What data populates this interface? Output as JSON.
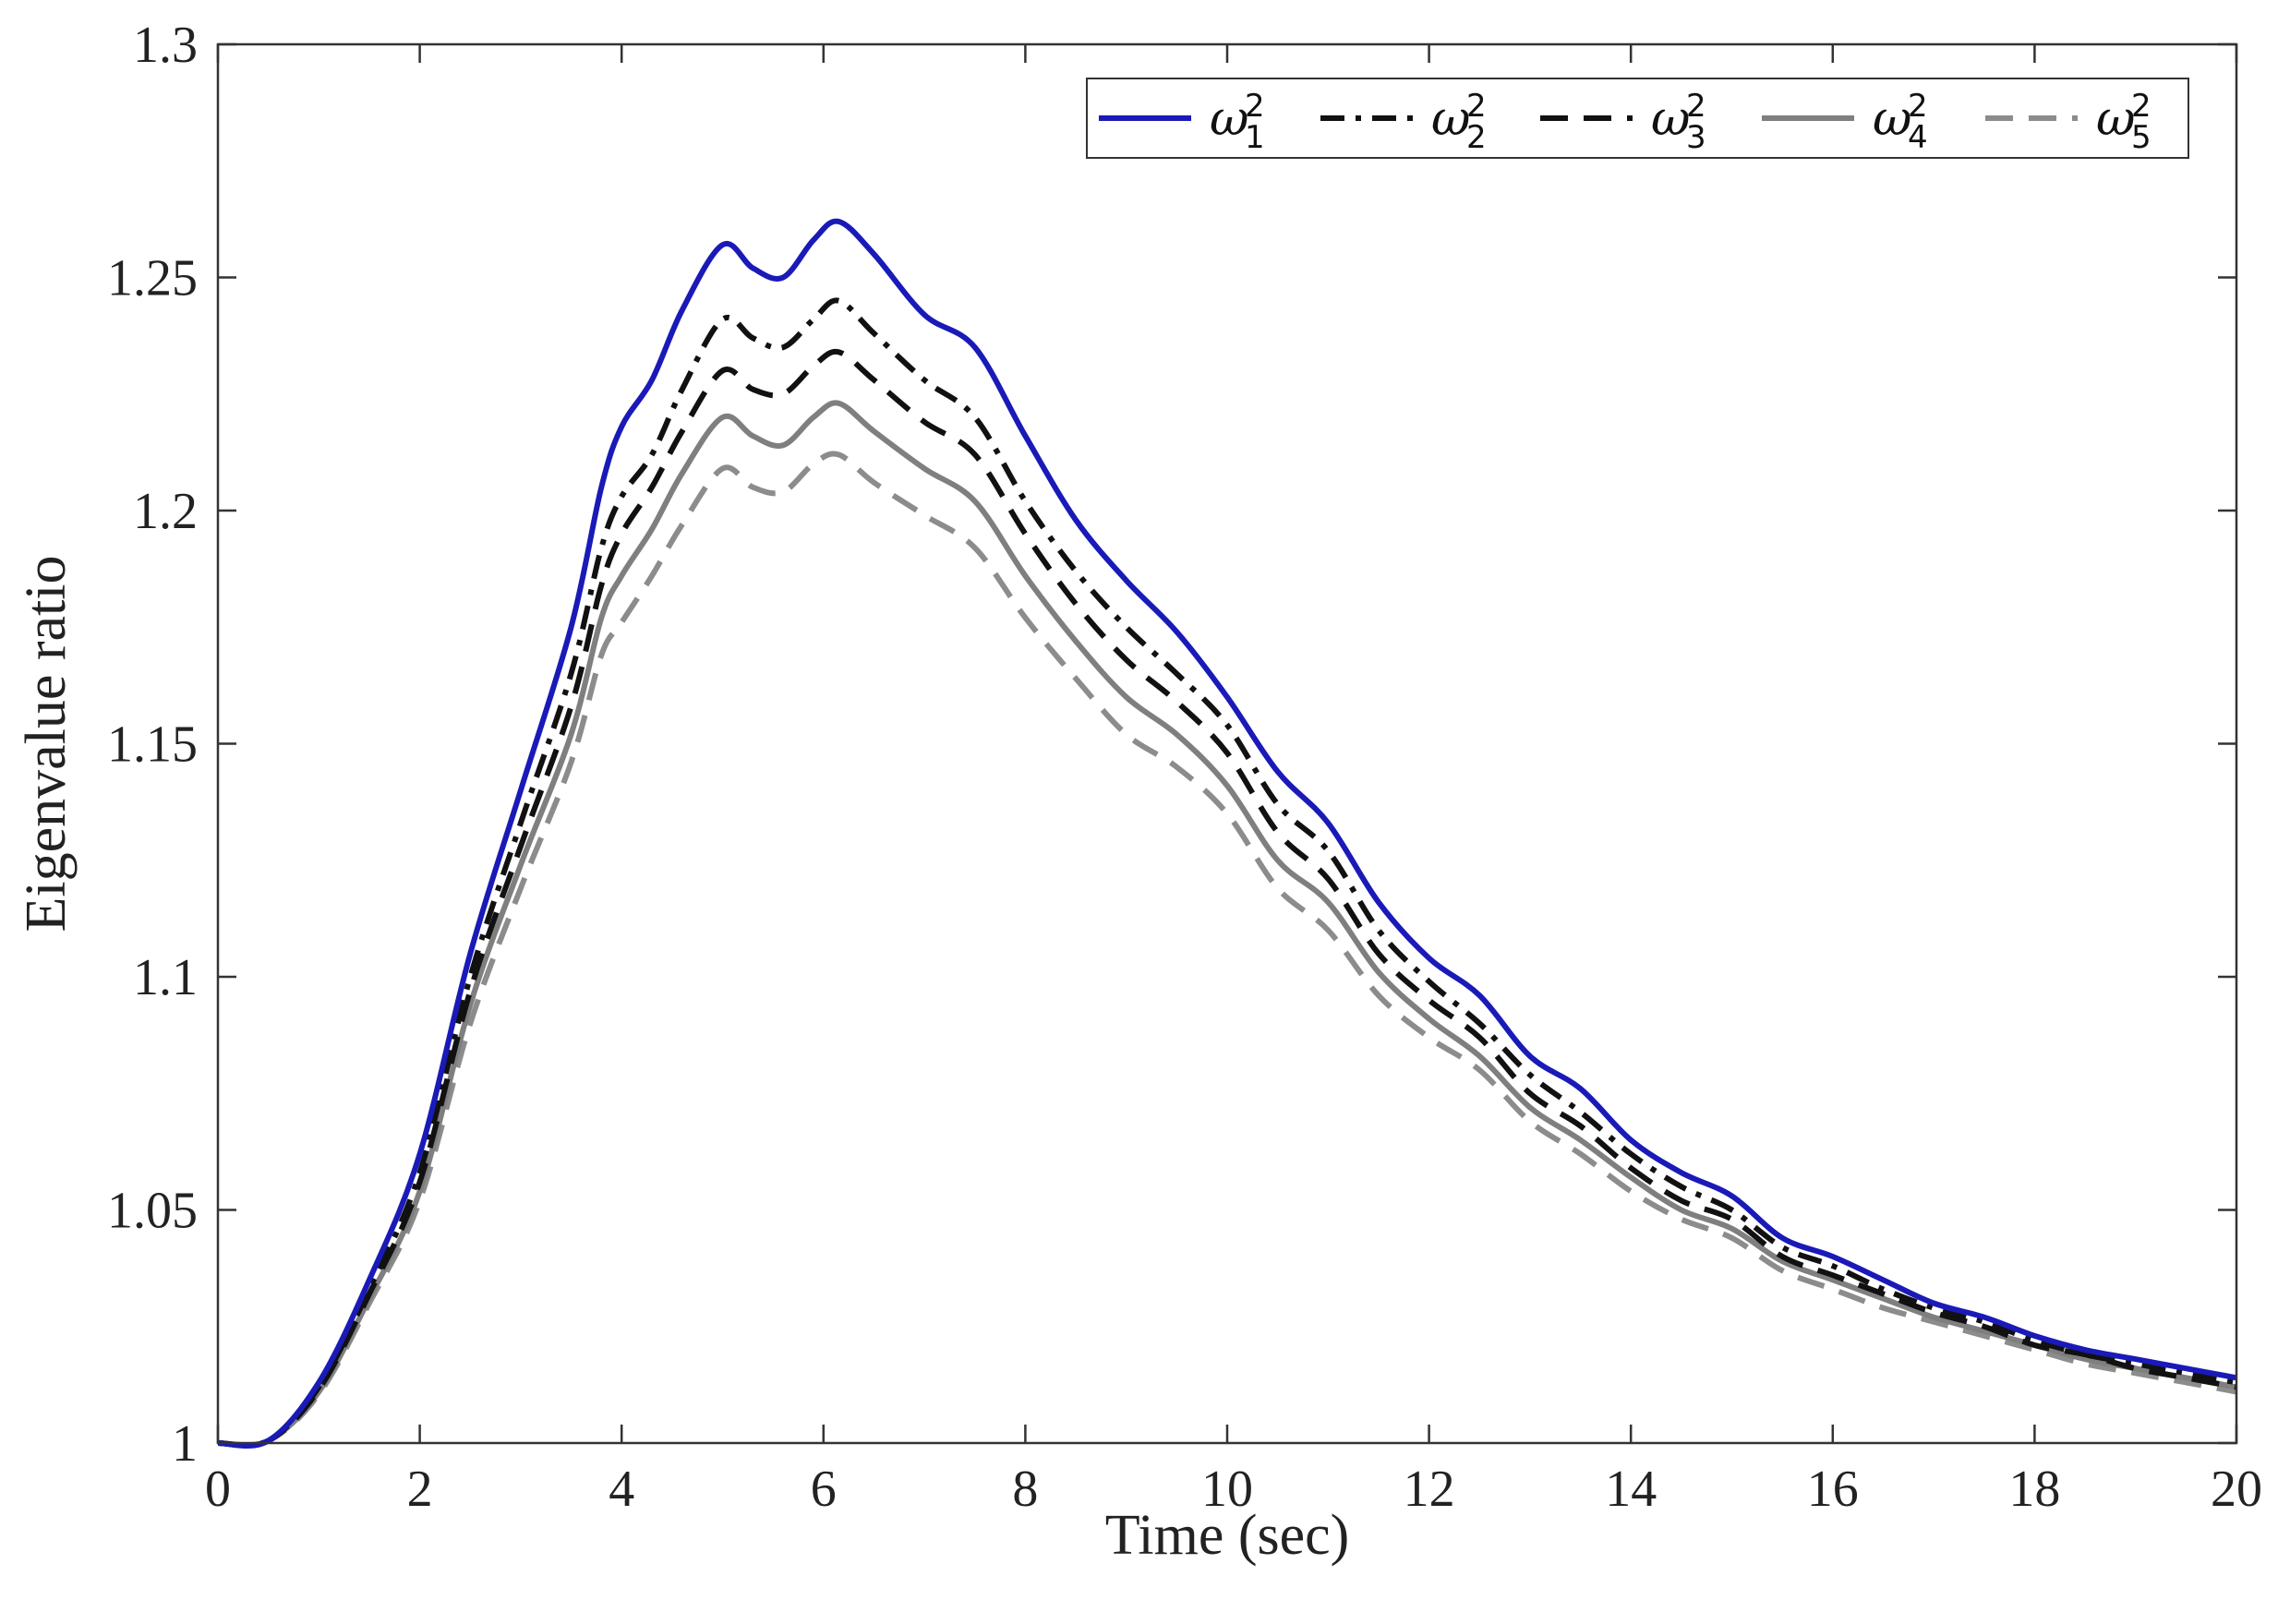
{
  "chart_data": {
    "type": "line",
    "title": "",
    "xlabel": "Time (sec)",
    "ylabel": "Eigenvalue ratio",
    "xlim": [
      0,
      20
    ],
    "ylim": [
      1,
      1.3
    ],
    "xticks": [
      0,
      2,
      4,
      6,
      8,
      10,
      12,
      14,
      16,
      18,
      20
    ],
    "xtick_labels": [
      "0",
      "2",
      "4",
      "6",
      "8",
      "10",
      "12",
      "14",
      "16",
      "18",
      "20"
    ],
    "yticks": [
      1,
      1.05,
      1.1,
      1.15,
      1.2,
      1.25,
      1.3
    ],
    "ytick_labels": [
      "1",
      "1.05",
      "1.1",
      "1.15",
      "1.2",
      "1.25",
      "1.3"
    ],
    "grid": false,
    "legend_position": "top-right",
    "x": [
      0,
      0.5,
      1,
      1.5,
      2,
      2.5,
      3,
      3.5,
      3.8,
      4,
      4.3,
      4.6,
      5,
      5.3,
      5.6,
      5.9,
      6.15,
      6.5,
      7,
      7.5,
      8,
      8.5,
      9,
      9.5,
      10,
      10.5,
      11,
      11.5,
      12,
      12.5,
      13,
      13.5,
      14,
      14.5,
      15,
      15.5,
      16,
      16.5,
      17,
      17.5,
      18,
      18.5,
      19,
      19.5,
      20
    ],
    "series": [
      {
        "name": "ω1²",
        "symbol": "ω",
        "subscript": "1",
        "superscript": "2",
        "color": "#1a1ab8",
        "style": "solid",
        "values": [
          1.0,
          1.0005,
          1.013,
          1.035,
          1.062,
          1.105,
          1.14,
          1.175,
          1.205,
          1.218,
          1.228,
          1.243,
          1.257,
          1.252,
          1.25,
          1.258,
          1.262,
          1.255,
          1.242,
          1.235,
          1.216,
          1.198,
          1.185,
          1.174,
          1.16,
          1.144,
          1.133,
          1.116,
          1.104,
          1.096,
          1.083,
          1.076,
          1.065,
          1.058,
          1.053,
          1.044,
          1.04,
          1.035,
          1.03,
          1.027,
          1.023,
          1.02,
          1.018,
          1.016,
          1.014
        ]
      },
      {
        "name": "ω2²",
        "symbol": "ω",
        "subscript": "2",
        "superscript": "2",
        "color": "#111111",
        "style": "dashdot",
        "values": [
          1.0,
          1.0005,
          1.012,
          1.033,
          1.058,
          1.1,
          1.133,
          1.165,
          1.192,
          1.203,
          1.212,
          1.226,
          1.241,
          1.237,
          1.235,
          1.241,
          1.245,
          1.238,
          1.228,
          1.22,
          1.202,
          1.187,
          1.175,
          1.165,
          1.154,
          1.137,
          1.127,
          1.11,
          1.099,
          1.09,
          1.079,
          1.071,
          1.062,
          1.055,
          1.05,
          1.042,
          1.038,
          1.033,
          1.029,
          1.026,
          1.022,
          1.019,
          1.017,
          1.015,
          1.013
        ]
      },
      {
        "name": "ω3²",
        "symbol": "ω",
        "subscript": "3",
        "superscript": "2",
        "color": "#111111",
        "style": "dashed",
        "values": [
          1.0,
          1.0005,
          1.0115,
          1.032,
          1.056,
          1.097,
          1.128,
          1.158,
          1.184,
          1.195,
          1.205,
          1.217,
          1.23,
          1.226,
          1.225,
          1.231,
          1.234,
          1.228,
          1.219,
          1.212,
          1.195,
          1.18,
          1.168,
          1.159,
          1.148,
          1.131,
          1.121,
          1.105,
          1.095,
          1.087,
          1.075,
          1.068,
          1.059,
          1.052,
          1.048,
          1.04,
          1.036,
          1.032,
          1.028,
          1.025,
          1.021,
          1.019,
          1.016,
          1.014,
          1.012
        ]
      },
      {
        "name": "ω4²",
        "symbol": "ω",
        "subscript": "4",
        "superscript": "2",
        "color": "#7f7f7f",
        "style": "solid",
        "values": [
          1.0,
          1.0005,
          1.011,
          1.031,
          1.054,
          1.094,
          1.124,
          1.152,
          1.177,
          1.186,
          1.196,
          1.208,
          1.22,
          1.216,
          1.214,
          1.22,
          1.223,
          1.217,
          1.209,
          1.202,
          1.186,
          1.172,
          1.16,
          1.152,
          1.141,
          1.125,
          1.116,
          1.101,
          1.091,
          1.083,
          1.072,
          1.065,
          1.057,
          1.05,
          1.046,
          1.039,
          1.035,
          1.031,
          1.027,
          1.024,
          1.021,
          1.018,
          1.016,
          1.014,
          1.012
        ]
      },
      {
        "name": "ω5²",
        "symbol": "ω",
        "subscript": "5",
        "superscript": "2",
        "color": "#8c8c8c",
        "style": "dashed",
        "values": [
          1.0,
          1.0005,
          1.0105,
          1.03,
          1.052,
          1.09,
          1.119,
          1.146,
          1.169,
          1.176,
          1.186,
          1.197,
          1.209,
          1.205,
          1.204,
          1.21,
          1.212,
          1.206,
          1.199,
          1.192,
          1.177,
          1.164,
          1.152,
          1.145,
          1.135,
          1.119,
          1.11,
          1.096,
          1.087,
          1.08,
          1.069,
          1.062,
          1.054,
          1.048,
          1.044,
          1.037,
          1.033,
          1.029,
          1.026,
          1.023,
          1.02,
          1.017,
          1.015,
          1.013,
          1.011
        ]
      }
    ]
  }
}
